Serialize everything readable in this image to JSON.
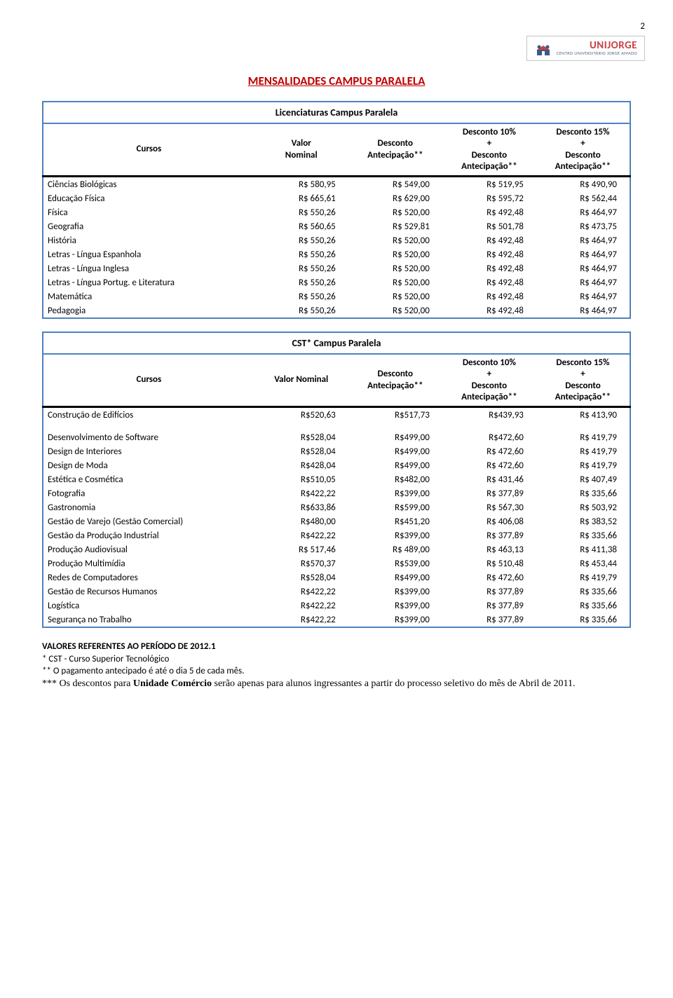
{
  "page_number": "2",
  "logo": {
    "name": "UNIJORGE",
    "subtitle": "CENTRO UNIVERSITÁRIO JORGE AMADO"
  },
  "main_title": "MENSALIDADES CAMPUS PARALELA",
  "headers": {
    "cursos": "Cursos",
    "valor_nominal": "Valor Nominal",
    "valor_nominal_2l": "Valor\nNominal",
    "desconto_antecip": "Desconto Antecipação**",
    "desc10": "Desconto 10% + Desconto Antecipação**",
    "desc15": "Desconto 15% + Desconto Antecipação**"
  },
  "table1": {
    "title": "Licenciaturas Campus Paralela",
    "rows": [
      {
        "c": "Ciências Biológicas",
        "v": "R$ 580,95",
        "d": "R$ 549,00",
        "d10": "R$ 519,95",
        "d15": "R$ 490,90"
      },
      {
        "c": "Educação Física",
        "v": "R$ 665,61",
        "d": "R$ 629,00",
        "d10": "R$ 595,72",
        "d15": "R$ 562,44"
      },
      {
        "c": "Física",
        "v": "R$ 550,26",
        "d": "R$ 520,00",
        "d10": "R$ 492,48",
        "d15": "R$ 464,97"
      },
      {
        "c": "Geografia",
        "v": "R$ 560,65",
        "d": "R$ 529,81",
        "d10": "R$ 501,78",
        "d15": "R$ 473,75"
      },
      {
        "c": "História",
        "v": "R$ 550,26",
        "d": "R$ 520,00",
        "d10": "R$ 492,48",
        "d15": "R$ 464,97"
      },
      {
        "c": "Letras - Língua Espanhola",
        "v": "R$ 550,26",
        "d": "R$ 520,00",
        "d10": "R$ 492,48",
        "d15": "R$ 464,97"
      },
      {
        "c": "Letras - Língua Inglesa",
        "v": "R$ 550,26",
        "d": "R$ 520,00",
        "d10": "R$ 492,48",
        "d15": "R$ 464,97"
      },
      {
        "c": "Letras - Língua Portug. e Literatura",
        "v": "R$ 550,26",
        "d": "R$ 520,00",
        "d10": "R$ 492,48",
        "d15": "R$ 464,97"
      },
      {
        "c": "Matemática",
        "v": "R$ 550,26",
        "d": "R$ 520,00",
        "d10": "R$ 492,48",
        "d15": "R$ 464,97"
      },
      {
        "c": "Pedagogia",
        "v": "R$ 550,26",
        "d": "R$ 520,00",
        "d10": "R$ 492,48",
        "d15": "R$ 464,97"
      }
    ]
  },
  "table2": {
    "title": "CST* Campus Paralela",
    "rows": [
      {
        "c": "Construção de Edifícios",
        "v": "R$520,63",
        "d": "R$517,73",
        "d10": "R$439,93",
        "d15": "R$ 413,90"
      },
      {
        "c": "Desenvolvimento de Software",
        "v": "R$528,04",
        "d": "R$499,00",
        "d10": "R$472,60",
        "d15": "R$ 419,79",
        "gap": true
      },
      {
        "c": "Design de Interiores",
        "v": "R$528,04",
        "d": "R$499,00",
        "d10": "R$ 472,60",
        "d15": "R$ 419,79"
      },
      {
        "c": "Design de Moda",
        "v": "R$428,04",
        "d": "R$499,00",
        "d10": "R$ 472,60",
        "d15": "R$ 419,79"
      },
      {
        "c": "Estética e Cosmética",
        "v": "R$510,05",
        "d": "R$482,00",
        "d10": "R$ 431,46",
        "d15": "R$ 407,49"
      },
      {
        "c": "Fotografia",
        "v": "R$422,22",
        "d": "R$399,00",
        "d10": "R$ 377,89",
        "d15": "R$ 335,66"
      },
      {
        "c": "Gastronomia",
        "v": "R$633,86",
        "d": "R$599,00",
        "d10": "R$ 567,30",
        "d15": "R$ 503,92"
      },
      {
        "c": "Gestão de Varejo (Gestão Comercial)",
        "v": "R$480,00",
        "d": "R$451,20",
        "d10": "R$ 406,08",
        "d15": "R$ 383,52"
      },
      {
        "c": "Gestão da Produção Industrial",
        "v": "R$422,22",
        "d": "R$399,00",
        "d10": "R$ 377,89",
        "d15": "R$ 335,66"
      },
      {
        "c": "Produção Audiovisual",
        "v": "R$ 517,46",
        "d": "R$ 489,00",
        "d10": "R$ 463,13",
        "d15": "R$ 411,38"
      },
      {
        "c": "Produção Multimídia",
        "v": "R$570,37",
        "d": "R$539,00",
        "d10": "R$ 510,48",
        "d15": "R$ 453,44"
      },
      {
        "c": "Redes de Computadores",
        "v": "R$528,04",
        "d": "R$499,00",
        "d10": "R$ 472,60",
        "d15": "R$ 419,79"
      },
      {
        "c": "Gestão de Recursos Humanos",
        "v": "R$422,22",
        "d": "R$399,00",
        "d10": "R$ 377,89",
        "d15": "R$ 335,66"
      },
      {
        "c": "Logística",
        "v": "R$422,22",
        "d": "R$399,00",
        "d10": "R$ 377,89",
        "d15": "R$ 335,66"
      },
      {
        "c": "Segurança no Trabalho",
        "v": "R$422,22",
        "d": "R$399,00",
        "d10": "R$ 377,89",
        "d15": "R$ 335,66"
      }
    ]
  },
  "notes": {
    "l1": "VALORES REFERENTES AO PERÍODO DE 2012.1",
    "l2": "* CST - Curso Superior Tecnológico",
    "l3": "** O pagamento antecipado é até o dia 5 de cada mês.",
    "l4a": "*** Os descontos para ",
    "l4b": "Unidade Comércio",
    "l4c": " serão apenas para alunos ingressantes a partir do processo seletivo do mês de Abril de 2011."
  }
}
